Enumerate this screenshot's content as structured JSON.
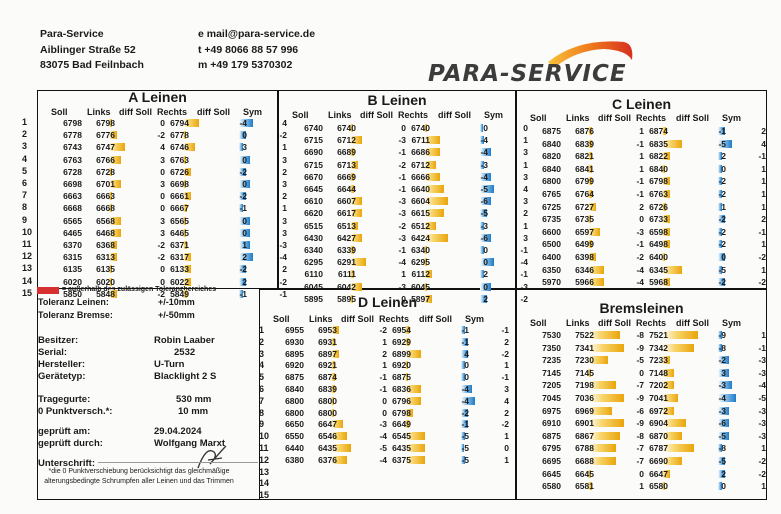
{
  "company": {
    "lines": [
      "Para-Service",
      "Aiblinger Straße 52",
      "83075 Bad Feilnbach"
    ]
  },
  "contact": {
    "lines": [
      "e mail@para-service.de",
      "t +49 8066 88 57 996",
      "m +49 179 5370302"
    ]
  },
  "logo": {
    "text": "PARA-SERVICE",
    "wing_colors": [
      "#f9c23a",
      "#ef7a1c",
      "#d5311f"
    ]
  },
  "headers": {
    "soll": "Soll",
    "links": "Links",
    "diff": "diff Soll",
    "rechts": "Rechts",
    "sym": "Sym"
  },
  "colors": {
    "yellow_bar": "#eaa50c",
    "blue_bar": "#1f7bc8",
    "tolerance_marker": "#d63030"
  },
  "panels": {
    "a": {
      "title": "A Leinen",
      "rownums": [
        "1",
        "2",
        "3",
        "4",
        "5",
        "6",
        "7",
        "8",
        "9",
        "10",
        "11",
        "12",
        "13",
        "14",
        "15"
      ],
      "rows": [
        [
          "6798",
          "6798",
          "0",
          "6794",
          "-4",
          "4"
        ],
        [
          "6778",
          "6776",
          "-2",
          "6778",
          "0",
          "-2"
        ],
        [
          "6743",
          "6747",
          "4",
          "6746",
          "3",
          "1"
        ],
        [
          "6763",
          "6766",
          "3",
          "6763",
          "0",
          "3"
        ],
        [
          "6728",
          "6728",
          "0",
          "6726",
          "-2",
          "2"
        ],
        [
          "6698",
          "6701",
          "3",
          "6698",
          "0",
          "3"
        ],
        [
          "6663",
          "6663",
          "0",
          "6661",
          "-2",
          "2"
        ],
        [
          "6668",
          "6668",
          "0",
          "6667",
          "-1",
          "1"
        ],
        [
          "6565",
          "6568",
          "3",
          "6565",
          "0",
          "3"
        ],
        [
          "6465",
          "6468",
          "3",
          "6465",
          "0",
          "3"
        ],
        [
          "6370",
          "6368",
          "-2",
          "6371",
          "1",
          "-3"
        ],
        [
          "6315",
          "6313",
          "-2",
          "6317",
          "2",
          "-4"
        ],
        [
          "6135",
          "6135",
          "0",
          "6133",
          "-2",
          "2"
        ],
        [
          "6020",
          "6020",
          "0",
          "6022",
          "2",
          "-2"
        ],
        [
          "5850",
          "5848",
          "-2",
          "5849",
          "-1",
          "-1"
        ]
      ]
    },
    "b": {
      "title": "B Leinen",
      "rows": [
        [
          "6740",
          "6740",
          "0",
          "6740",
          "0",
          "0"
        ],
        [
          "6715",
          "6712",
          "-3",
          "6711",
          "-4",
          "1"
        ],
        [
          "6690",
          "6689",
          "-1",
          "6686",
          "-4",
          "3"
        ],
        [
          "6715",
          "6713",
          "-2",
          "6712",
          "-3",
          "1"
        ],
        [
          "6670",
          "6669",
          "-1",
          "6666",
          "-4",
          "3"
        ],
        [
          "6645",
          "6644",
          "-1",
          "6640",
          "-5",
          "4"
        ],
        [
          "6610",
          "6607",
          "-3",
          "6604",
          "-6",
          "3"
        ],
        [
          "6620",
          "6617",
          "-3",
          "6615",
          "-5",
          "2"
        ],
        [
          "6515",
          "6513",
          "-2",
          "6512",
          "-3",
          "1"
        ],
        [
          "6430",
          "6427",
          "-3",
          "6424",
          "-6",
          "3"
        ],
        [
          "6340",
          "6339",
          "-1",
          "6340",
          "0",
          "-1"
        ],
        [
          "6295",
          "6291",
          "-4",
          "6295",
          "0",
          "-4"
        ],
        [
          "6110",
          "6111",
          "1",
          "6112",
          "2",
          "-1"
        ],
        [
          "6045",
          "6042",
          "-3",
          "6045",
          "0",
          "-3"
        ],
        [
          "5895",
          "5895",
          "0",
          "5897",
          "2",
          "-2"
        ]
      ]
    },
    "c": {
      "title": "C Leinen",
      "rows": [
        [
          "6875",
          "6876",
          "1",
          "6874",
          "-1",
          "2"
        ],
        [
          "6840",
          "6839",
          "-1",
          "6835",
          "-5",
          "4"
        ],
        [
          "6820",
          "6821",
          "1",
          "6822",
          "2",
          "-1"
        ],
        [
          "6840",
          "6841",
          "1",
          "6840",
          "0",
          "1"
        ],
        [
          "6800",
          "6799",
          "-1",
          "6798",
          "-2",
          "1"
        ],
        [
          "6765",
          "6764",
          "-1",
          "6763",
          "-2",
          "1"
        ],
        [
          "6725",
          "6727",
          "2",
          "6726",
          "1",
          "1"
        ],
        [
          "6735",
          "6735",
          "0",
          "6733",
          "-2",
          "2"
        ],
        [
          "6600",
          "6597",
          "-3",
          "6598",
          "-2",
          "-1"
        ],
        [
          "6500",
          "6499",
          "-1",
          "6498",
          "-2",
          "1"
        ],
        [
          "6400",
          "6398",
          "-2",
          "6400",
          "0",
          "-2"
        ],
        [
          "6350",
          "6346",
          "-4",
          "6345",
          "-5",
          "1"
        ],
        [
          "5970",
          "5966",
          "-4",
          "5968",
          "-2",
          "-2"
        ]
      ]
    },
    "d": {
      "title": "D Leinen",
      "rownums": [
        "1",
        "2",
        "3",
        "4",
        "5",
        "6",
        "7",
        "8",
        "9",
        "10",
        "11",
        "12",
        "13",
        "14",
        "15"
      ],
      "rows": [
        [
          "6955",
          "6953",
          "-2",
          "6954",
          "-1",
          "-1"
        ],
        [
          "6930",
          "6931",
          "1",
          "6929",
          "-1",
          "2"
        ],
        [
          "6895",
          "6897",
          "2",
          "6899",
          "4",
          "-2"
        ],
        [
          "6920",
          "6921",
          "1",
          "6920",
          "0",
          "1"
        ],
        [
          "6875",
          "6874",
          "-1",
          "6875",
          "0",
          "-1"
        ],
        [
          "6840",
          "6839",
          "-1",
          "6836",
          "-4",
          "3"
        ],
        [
          "6800",
          "6800",
          "0",
          "6796",
          "-4",
          "4"
        ],
        [
          "6800",
          "6800",
          "0",
          "6798",
          "-2",
          "2"
        ],
        [
          "6650",
          "6647",
          "-3",
          "6649",
          "-1",
          "-2"
        ],
        [
          "6550",
          "6546",
          "-4",
          "6545",
          "-5",
          "1"
        ],
        [
          "6440",
          "6435",
          "-5",
          "6435",
          "-5",
          "0"
        ],
        [
          "6380",
          "6376",
          "-4",
          "6375",
          "-5",
          "1"
        ]
      ]
    },
    "e": {
      "title": "Bremsleinen",
      "rows": [
        [
          "7530",
          "7522",
          "-8",
          "7521",
          "-9",
          "1"
        ],
        [
          "7350",
          "7341",
          "-9",
          "7342",
          "-8",
          "-1"
        ],
        [
          "7235",
          "7230",
          "-5",
          "7233",
          "-2",
          "-3"
        ],
        [
          "7145",
          "7145",
          "0",
          "7148",
          "3",
          "-3"
        ],
        [
          "7205",
          "7198",
          "-7",
          "7202",
          "-3",
          "-4"
        ],
        [
          "7045",
          "7036",
          "-9",
          "7041",
          "-4",
          "-5"
        ],
        [
          "6975",
          "6969",
          "-6",
          "6972",
          "-3",
          "-3"
        ],
        [
          "6910",
          "6901",
          "-9",
          "6904",
          "-6",
          "-3"
        ],
        [
          "6875",
          "6867",
          "-8",
          "6870",
          "-5",
          "-3"
        ],
        [
          "6795",
          "6788",
          "-7",
          "6787",
          "-8",
          "1"
        ],
        [
          "6695",
          "6688",
          "-7",
          "6690",
          "-5",
          "-2"
        ],
        [
          "6645",
          "6645",
          "0",
          "6647",
          "2",
          "-2"
        ],
        [
          "6580",
          "6581",
          "1",
          "6580",
          "0",
          "1"
        ]
      ]
    }
  },
  "legend": "= außerhalb des zulässigen Toleranzbereiches",
  "tolerance": {
    "leinen_label": "Toleranz Leinen:",
    "leinen_value": "+/-10mm",
    "bremse_label": "Toleranz Bremse:",
    "bremse_value": "+/-50mm"
  },
  "info": {
    "besitzer_label": "Besitzer:",
    "besitzer": "Robin Laaber",
    "serial_label": "Serial:",
    "serial": "2532",
    "hersteller_label": "Hersteller:",
    "hersteller": "U-Turn",
    "geraetetyp_label": "Gerätetyp:",
    "geraetetyp": "Blacklight 2 S",
    "tragegurte_label": "Tragegurte:",
    "tragegurte": "530 mm",
    "punktversch_label": "0 Punktversch.*:",
    "punktversch": "10 mm",
    "geprueft_am_label": "geprüft am:",
    "geprueft_am": "29.04.2024",
    "geprueft_durch_label": "geprüft durch:",
    "geprueft_durch": "Wolfgang Marxt",
    "unterschrift_label": "Unterschrift:"
  },
  "footnote": "*die 0 Punktverschiebung berücksichtigt das gleichmäßige alterungsbedingte Schrumpfen aller Leinen und das Trimmen"
}
